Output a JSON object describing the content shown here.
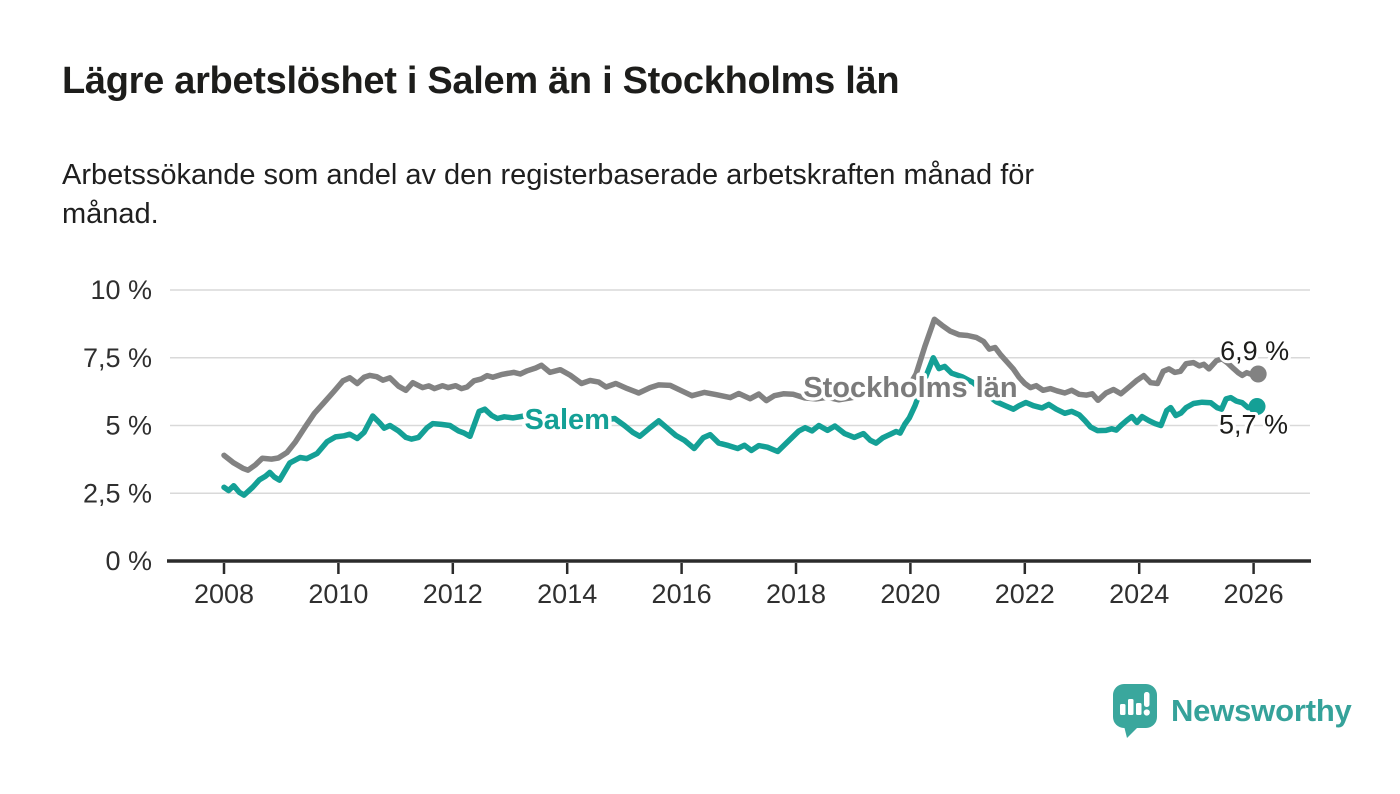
{
  "header": {
    "title": "Lägre arbetslöshet i Salem än i Stockholms län",
    "subtitle_lines": [
      "Arbetssökande som andel av den registerbaserade arbetskraften månad för",
      "månad."
    ]
  },
  "footer": {
    "brand": "Newsworthy"
  },
  "colors": {
    "stockholm_line": "#828282",
    "stockholm_label": "#7b7b7b",
    "salem_line": "#14a096",
    "salem_label": "#14a096",
    "grid": "#d9d9d9",
    "axis": "#2b2b2b",
    "tick_label": "#2f2f2f",
    "value_label": "#1d1d1b",
    "brand_teal": "#35a29a"
  },
  "chart_data": {
    "type": "line",
    "x_unit": "decimal_year",
    "ylim": [
      0,
      10
    ],
    "x_range": [
      2008,
      2026.6
    ],
    "grid": true,
    "legend_position": "inline-labels",
    "y_ticks": [
      {
        "value": 10,
        "label": "10 %"
      },
      {
        "value": 7.5,
        "label": "7,5 %"
      },
      {
        "value": 5,
        "label": "5 %"
      },
      {
        "value": 2.5,
        "label": "2,5 %"
      },
      {
        "value": 0,
        "label": "0 %"
      }
    ],
    "x_ticks": [
      {
        "year": 2008,
        "label": "2008"
      },
      {
        "year": 2010,
        "label": "2010"
      },
      {
        "year": 2012,
        "label": "2012"
      },
      {
        "year": 2014,
        "label": "2014"
      },
      {
        "year": 2016,
        "label": "2016"
      },
      {
        "year": 2018,
        "label": "2018"
      },
      {
        "year": 2020,
        "label": "2020"
      },
      {
        "year": 2022,
        "label": "2022"
      },
      {
        "year": 2024,
        "label": "2024"
      },
      {
        "year": 2026,
        "label": "2026"
      }
    ],
    "annotations": [
      {
        "text": "Stockholms län",
        "x": 2020.0,
        "y": 6.42,
        "color": "#7b7b7b"
      },
      {
        "text": "Salem",
        "x": 2014.0,
        "y": 5.24,
        "color": "#14a096"
      }
    ],
    "series": [
      {
        "name": "Stockholms län",
        "color": "#828282",
        "end_value": 6.9,
        "end_label": "6,9 %",
        "points": [
          [
            2008.0,
            3.9
          ],
          [
            2008.17,
            3.62
          ],
          [
            2008.33,
            3.42
          ],
          [
            2008.42,
            3.35
          ],
          [
            2008.55,
            3.55
          ],
          [
            2008.67,
            3.79
          ],
          [
            2008.83,
            3.76
          ],
          [
            2008.95,
            3.8
          ],
          [
            2009.1,
            4.0
          ],
          [
            2009.25,
            4.4
          ],
          [
            2009.42,
            4.95
          ],
          [
            2009.58,
            5.45
          ],
          [
            2009.75,
            5.85
          ],
          [
            2009.92,
            6.25
          ],
          [
            2010.08,
            6.65
          ],
          [
            2010.2,
            6.76
          ],
          [
            2010.33,
            6.55
          ],
          [
            2010.45,
            6.78
          ],
          [
            2010.55,
            6.85
          ],
          [
            2010.67,
            6.8
          ],
          [
            2010.78,
            6.67
          ],
          [
            2010.9,
            6.76
          ],
          [
            2011.05,
            6.45
          ],
          [
            2011.18,
            6.3
          ],
          [
            2011.3,
            6.58
          ],
          [
            2011.47,
            6.4
          ],
          [
            2011.58,
            6.46
          ],
          [
            2011.68,
            6.36
          ],
          [
            2011.82,
            6.47
          ],
          [
            2011.92,
            6.4
          ],
          [
            2012.05,
            6.47
          ],
          [
            2012.15,
            6.36
          ],
          [
            2012.25,
            6.42
          ],
          [
            2012.37,
            6.65
          ],
          [
            2012.5,
            6.72
          ],
          [
            2012.6,
            6.84
          ],
          [
            2012.7,
            6.78
          ],
          [
            2012.85,
            6.88
          ],
          [
            2012.95,
            6.92
          ],
          [
            2013.07,
            6.96
          ],
          [
            2013.18,
            6.9
          ],
          [
            2013.3,
            7.02
          ],
          [
            2013.45,
            7.12
          ],
          [
            2013.55,
            7.22
          ],
          [
            2013.7,
            6.96
          ],
          [
            2013.88,
            7.06
          ],
          [
            2014.05,
            6.86
          ],
          [
            2014.25,
            6.55
          ],
          [
            2014.4,
            6.66
          ],
          [
            2014.55,
            6.6
          ],
          [
            2014.68,
            6.42
          ],
          [
            2014.85,
            6.55
          ],
          [
            2015.05,
            6.36
          ],
          [
            2015.25,
            6.2
          ],
          [
            2015.45,
            6.4
          ],
          [
            2015.6,
            6.5
          ],
          [
            2015.8,
            6.48
          ],
          [
            2016.0,
            6.28
          ],
          [
            2016.18,
            6.1
          ],
          [
            2016.4,
            6.22
          ],
          [
            2016.6,
            6.14
          ],
          [
            2016.85,
            6.03
          ],
          [
            2017.0,
            6.18
          ],
          [
            2017.2,
            5.99
          ],
          [
            2017.35,
            6.16
          ],
          [
            2017.48,
            5.92
          ],
          [
            2017.62,
            6.1
          ],
          [
            2017.78,
            6.17
          ],
          [
            2017.95,
            6.15
          ],
          [
            2018.15,
            6.02
          ],
          [
            2018.35,
            5.98
          ],
          [
            2018.55,
            6.04
          ],
          [
            2018.75,
            5.95
          ],
          [
            2018.95,
            6.02
          ],
          [
            2019.15,
            6.1
          ],
          [
            2019.35,
            6.14
          ],
          [
            2019.55,
            6.2
          ],
          [
            2019.75,
            6.22
          ],
          [
            2019.95,
            6.35
          ],
          [
            2020.1,
            6.9
          ],
          [
            2020.25,
            7.9
          ],
          [
            2020.42,
            8.92
          ],
          [
            2020.55,
            8.7
          ],
          [
            2020.7,
            8.48
          ],
          [
            2020.85,
            8.35
          ],
          [
            2021.0,
            8.32
          ],
          [
            2021.15,
            8.25
          ],
          [
            2021.28,
            8.1
          ],
          [
            2021.38,
            7.82
          ],
          [
            2021.48,
            7.88
          ],
          [
            2021.58,
            7.6
          ],
          [
            2021.7,
            7.32
          ],
          [
            2021.8,
            7.08
          ],
          [
            2021.9,
            6.78
          ],
          [
            2022.0,
            6.55
          ],
          [
            2022.1,
            6.4
          ],
          [
            2022.2,
            6.47
          ],
          [
            2022.32,
            6.3
          ],
          [
            2022.45,
            6.36
          ],
          [
            2022.56,
            6.28
          ],
          [
            2022.7,
            6.2
          ],
          [
            2022.82,
            6.3
          ],
          [
            2022.95,
            6.15
          ],
          [
            2023.08,
            6.12
          ],
          [
            2023.18,
            6.17
          ],
          [
            2023.28,
            5.93
          ],
          [
            2023.42,
            6.2
          ],
          [
            2023.55,
            6.33
          ],
          [
            2023.68,
            6.17
          ],
          [
            2023.85,
            6.47
          ],
          [
            2023.95,
            6.65
          ],
          [
            2024.08,
            6.84
          ],
          [
            2024.2,
            6.58
          ],
          [
            2024.32,
            6.55
          ],
          [
            2024.42,
            7.0
          ],
          [
            2024.52,
            7.09
          ],
          [
            2024.62,
            6.96
          ],
          [
            2024.72,
            7.0
          ],
          [
            2024.82,
            7.28
          ],
          [
            2024.95,
            7.32
          ],
          [
            2025.05,
            7.2
          ],
          [
            2025.13,
            7.26
          ],
          [
            2025.22,
            7.09
          ],
          [
            2025.35,
            7.39
          ],
          [
            2025.45,
            7.46
          ],
          [
            2025.55,
            7.3
          ],
          [
            2025.65,
            7.1
          ],
          [
            2025.73,
            6.95
          ],
          [
            2025.8,
            6.85
          ],
          [
            2025.88,
            6.95
          ],
          [
            2025.97,
            6.88
          ],
          [
            2026.08,
            6.9
          ]
        ]
      },
      {
        "name": "Salem",
        "color": "#14a096",
        "end_value": 5.7,
        "end_label": "5,7 %",
        "points": [
          [
            2008.0,
            2.72
          ],
          [
            2008.08,
            2.6
          ],
          [
            2008.17,
            2.78
          ],
          [
            2008.27,
            2.53
          ],
          [
            2008.35,
            2.43
          ],
          [
            2008.5,
            2.72
          ],
          [
            2008.62,
            3.0
          ],
          [
            2008.72,
            3.12
          ],
          [
            2008.8,
            3.27
          ],
          [
            2008.88,
            3.1
          ],
          [
            2008.97,
            2.98
          ],
          [
            2009.15,
            3.62
          ],
          [
            2009.33,
            3.82
          ],
          [
            2009.45,
            3.78
          ],
          [
            2009.63,
            3.97
          ],
          [
            2009.8,
            4.4
          ],
          [
            2009.95,
            4.58
          ],
          [
            2010.1,
            4.62
          ],
          [
            2010.2,
            4.68
          ],
          [
            2010.33,
            4.52
          ],
          [
            2010.45,
            4.75
          ],
          [
            2010.6,
            5.35
          ],
          [
            2010.72,
            5.1
          ],
          [
            2010.8,
            4.9
          ],
          [
            2010.9,
            5.0
          ],
          [
            2011.05,
            4.8
          ],
          [
            2011.18,
            4.56
          ],
          [
            2011.28,
            4.5
          ],
          [
            2011.4,
            4.56
          ],
          [
            2011.55,
            4.92
          ],
          [
            2011.65,
            5.07
          ],
          [
            2011.8,
            5.04
          ],
          [
            2011.95,
            5.0
          ],
          [
            2012.1,
            4.8
          ],
          [
            2012.2,
            4.72
          ],
          [
            2012.3,
            4.6
          ],
          [
            2012.46,
            5.52
          ],
          [
            2012.56,
            5.6
          ],
          [
            2012.68,
            5.37
          ],
          [
            2012.78,
            5.26
          ],
          [
            2012.9,
            5.32
          ],
          [
            2013.05,
            5.28
          ],
          [
            2013.25,
            5.35
          ],
          [
            2013.45,
            5.22
          ],
          [
            2013.65,
            5.18
          ],
          [
            2013.85,
            5.28
          ],
          [
            2014.05,
            5.14
          ],
          [
            2014.25,
            5.2
          ],
          [
            2014.45,
            5.1
          ],
          [
            2014.65,
            5.2
          ],
          [
            2014.83,
            5.26
          ],
          [
            2015.0,
            5.0
          ],
          [
            2015.15,
            4.74
          ],
          [
            2015.27,
            4.6
          ],
          [
            2015.45,
            4.92
          ],
          [
            2015.6,
            5.17
          ],
          [
            2015.75,
            4.9
          ],
          [
            2015.9,
            4.63
          ],
          [
            2016.05,
            4.45
          ],
          [
            2016.22,
            4.15
          ],
          [
            2016.38,
            4.55
          ],
          [
            2016.5,
            4.66
          ],
          [
            2016.65,
            4.35
          ],
          [
            2016.82,
            4.26
          ],
          [
            2016.98,
            4.15
          ],
          [
            2017.1,
            4.27
          ],
          [
            2017.22,
            4.08
          ],
          [
            2017.35,
            4.26
          ],
          [
            2017.5,
            4.2
          ],
          [
            2017.68,
            4.04
          ],
          [
            2017.88,
            4.45
          ],
          [
            2018.05,
            4.8
          ],
          [
            2018.16,
            4.92
          ],
          [
            2018.28,
            4.8
          ],
          [
            2018.4,
            5.0
          ],
          [
            2018.55,
            4.82
          ],
          [
            2018.68,
            4.98
          ],
          [
            2018.85,
            4.7
          ],
          [
            2019.02,
            4.56
          ],
          [
            2019.18,
            4.7
          ],
          [
            2019.3,
            4.45
          ],
          [
            2019.4,
            4.35
          ],
          [
            2019.52,
            4.55
          ],
          [
            2019.65,
            4.68
          ],
          [
            2019.75,
            4.78
          ],
          [
            2019.82,
            4.72
          ],
          [
            2019.9,
            5.04
          ],
          [
            2019.98,
            5.28
          ],
          [
            2020.08,
            5.73
          ],
          [
            2020.25,
            6.7
          ],
          [
            2020.4,
            7.5
          ],
          [
            2020.5,
            7.1
          ],
          [
            2020.6,
            7.18
          ],
          [
            2020.72,
            6.93
          ],
          [
            2020.9,
            6.8
          ],
          [
            2021.1,
            6.58
          ],
          [
            2021.3,
            6.2
          ],
          [
            2021.5,
            5.88
          ],
          [
            2021.67,
            5.72
          ],
          [
            2021.8,
            5.6
          ],
          [
            2021.9,
            5.73
          ],
          [
            2022.02,
            5.85
          ],
          [
            2022.15,
            5.73
          ],
          [
            2022.3,
            5.65
          ],
          [
            2022.42,
            5.78
          ],
          [
            2022.55,
            5.6
          ],
          [
            2022.7,
            5.45
          ],
          [
            2022.82,
            5.52
          ],
          [
            2022.95,
            5.4
          ],
          [
            2023.05,
            5.18
          ],
          [
            2023.15,
            4.94
          ],
          [
            2023.27,
            4.81
          ],
          [
            2023.42,
            4.82
          ],
          [
            2023.52,
            4.88
          ],
          [
            2023.6,
            4.83
          ],
          [
            2023.68,
            5.0
          ],
          [
            2023.78,
            5.18
          ],
          [
            2023.87,
            5.33
          ],
          [
            2023.96,
            5.11
          ],
          [
            2024.05,
            5.33
          ],
          [
            2024.17,
            5.18
          ],
          [
            2024.28,
            5.07
          ],
          [
            2024.38,
            5.0
          ],
          [
            2024.48,
            5.55
          ],
          [
            2024.55,
            5.66
          ],
          [
            2024.64,
            5.37
          ],
          [
            2024.73,
            5.46
          ],
          [
            2024.82,
            5.66
          ],
          [
            2024.95,
            5.81
          ],
          [
            2025.1,
            5.86
          ],
          [
            2025.25,
            5.84
          ],
          [
            2025.36,
            5.66
          ],
          [
            2025.44,
            5.6
          ],
          [
            2025.52,
            5.98
          ],
          [
            2025.6,
            6.03
          ],
          [
            2025.7,
            5.9
          ],
          [
            2025.8,
            5.84
          ],
          [
            2025.9,
            5.66
          ],
          [
            2026.06,
            5.7
          ]
        ]
      }
    ]
  }
}
